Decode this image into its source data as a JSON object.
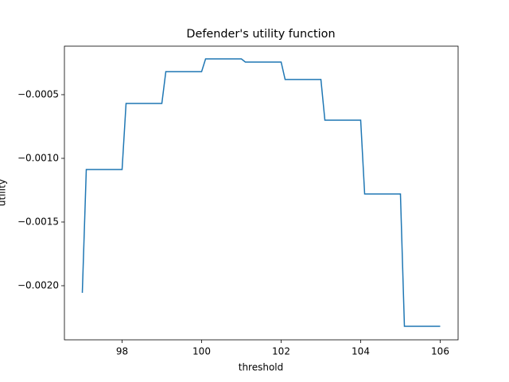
{
  "chart_data": {
    "type": "line",
    "title": "Defender's utility function",
    "x_label": "threshold",
    "y_label": "utility",
    "x": [
      97,
      97.1,
      98,
      98.1,
      99,
      99.1,
      100,
      100.1,
      101,
      101.1,
      102,
      102.1,
      103,
      103.1,
      104,
      104.1,
      105,
      105.1,
      106
    ],
    "series": [
      {
        "color": "#1f77b4",
        "values": [
          -0.002056,
          -0.001088,
          -0.001088,
          -0.000569,
          -0.000569,
          -0.000319,
          -0.000319,
          -0.000219,
          -0.000219,
          -0.000244,
          -0.000244,
          -0.000381,
          -0.000381,
          -0.0007,
          -0.0007,
          -0.00128,
          -0.00128,
          -0.002319,
          -0.002319
        ]
      }
    ],
    "xlim": [
      96.55,
      106.45
    ],
    "xticks": [
      98,
      100,
      102,
      104,
      106
    ],
    "ylim": [
      -0.002425,
      -0.000119
    ],
    "yticks": [
      {
        "value": -0.002,
        "label": "−0.0020"
      },
      {
        "value": -0.0015,
        "label": "−0.0015"
      },
      {
        "value": -0.001,
        "label": "−0.0010"
      },
      {
        "value": -0.0005,
        "label": "−0.0005"
      }
    ],
    "grid": false
  }
}
